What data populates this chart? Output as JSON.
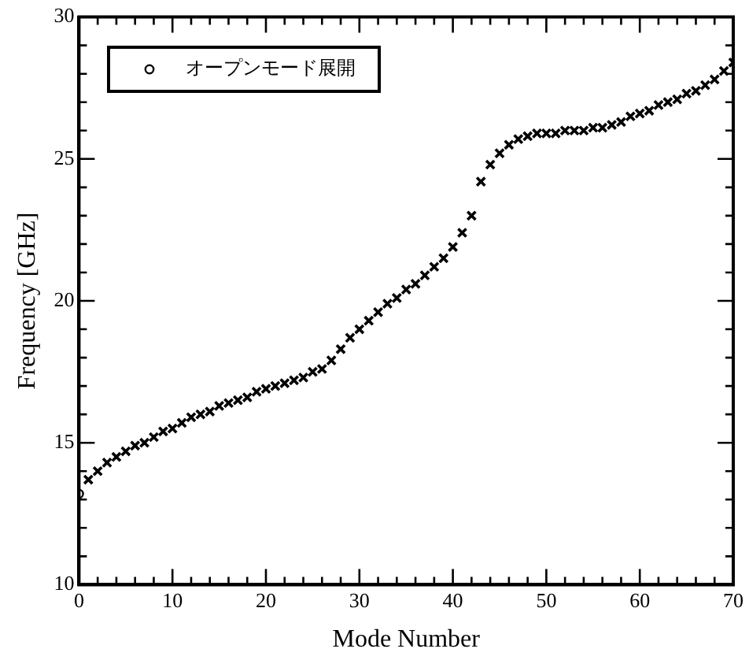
{
  "chart_data": {
    "type": "scatter",
    "xlabel": "Mode Number",
    "ylabel": "Frequency [GHz]",
    "series": [
      {
        "color": "#000000",
        "marker": "cross",
        "x": [
          1,
          2,
          3,
          4,
          5,
          6,
          7,
          8,
          9,
          10,
          11,
          12,
          13,
          14,
          15,
          16,
          17,
          18,
          19,
          20,
          21,
          22,
          23,
          24,
          25,
          26,
          27,
          28,
          29,
          30,
          31,
          32,
          33,
          34,
          35,
          36,
          37,
          38,
          39,
          40,
          41,
          42,
          43,
          44,
          45,
          46,
          47,
          48,
          49,
          50,
          51,
          52,
          53,
          54,
          55,
          56,
          57,
          58,
          59,
          60,
          61,
          62,
          63,
          64,
          65,
          66,
          67,
          68,
          69,
          70
        ],
        "values": [
          13.7,
          14.0,
          14.3,
          14.5,
          14.7,
          14.9,
          15.0,
          15.2,
          15.4,
          15.5,
          15.7,
          15.9,
          16.0,
          16.1,
          16.3,
          16.4,
          16.5,
          16.6,
          16.8,
          16.9,
          17.0,
          17.1,
          17.2,
          17.3,
          17.5,
          17.6,
          17.9,
          18.3,
          18.7,
          19.0,
          19.3,
          19.6,
          19.9,
          20.1,
          20.4,
          20.6,
          20.9,
          21.2,
          21.5,
          21.9,
          22.4,
          23.0,
          24.2,
          24.8,
          25.2,
          25.5,
          25.7,
          25.8,
          25.9,
          25.9,
          25.9,
          26.0,
          26.0,
          26.0,
          26.1,
          26.1,
          26.2,
          26.3,
          26.5,
          26.6,
          26.7,
          26.9,
          27.0,
          27.1,
          27.3,
          27.4,
          27.6,
          27.8,
          28.1,
          28.4
        ]
      },
      {
        "name": "オープンモード展開",
        "color": "#000000",
        "marker": "circle",
        "x": [
          0
        ],
        "values": [
          13.2
        ]
      }
    ],
    "xlim": [
      0,
      70
    ],
    "xticks": [
      0,
      {
        "value": 2,
        "label": null
      },
      {
        "value": 4,
        "label": null
      },
      {
        "value": 6,
        "label": null
      },
      {
        "value": 8,
        "label": null
      },
      10,
      {
        "value": 12,
        "label": null
      },
      {
        "value": 14,
        "label": null
      },
      {
        "value": 16,
        "label": null
      },
      {
        "value": 18,
        "label": null
      },
      20,
      {
        "value": 22,
        "label": null
      },
      {
        "value": 24,
        "label": null
      },
      {
        "value": 26,
        "label": null
      },
      {
        "value": 28,
        "label": null
      },
      30,
      {
        "value": 32,
        "label": null
      },
      {
        "value": 34,
        "label": null
      },
      {
        "value": 36,
        "label": null
      },
      {
        "value": 38,
        "label": null
      },
      40,
      {
        "value": 42,
        "label": null
      },
      {
        "value": 44,
        "label": null
      },
      {
        "value": 46,
        "label": null
      },
      {
        "value": 48,
        "label": null
      },
      50,
      {
        "value": 52,
        "label": null
      },
      {
        "value": 54,
        "label": null
      },
      {
        "value": 56,
        "label": null
      },
      {
        "value": 58,
        "label": null
      },
      60,
      {
        "value": 62,
        "label": null
      },
      {
        "value": 64,
        "label": null
      },
      {
        "value": 66,
        "label": null
      },
      {
        "value": 68,
        "label": null
      },
      70
    ],
    "ylim": [
      10,
      30
    ],
    "yticks": [
      10,
      {
        "value": 11,
        "label": null
      },
      {
        "value": 12,
        "label": null
      },
      {
        "value": 13,
        "label": null
      },
      {
        "value": 14,
        "label": null
      },
      15,
      {
        "value": 16,
        "label": null
      },
      {
        "value": 17,
        "label": null
      },
      {
        "value": 18,
        "label": null
      },
      {
        "value": 19,
        "label": null
      },
      20,
      {
        "value": 21,
        "label": null
      },
      {
        "value": 22,
        "label": null
      },
      {
        "value": 23,
        "label": null
      },
      {
        "value": 24,
        "label": null
      },
      25,
      {
        "value": 26,
        "label": null
      },
      {
        "value": 27,
        "label": null
      },
      {
        "value": 28,
        "label": null
      },
      {
        "value": 29,
        "label": null
      },
      30
    ],
    "grid": false,
    "legend": "top left"
  }
}
